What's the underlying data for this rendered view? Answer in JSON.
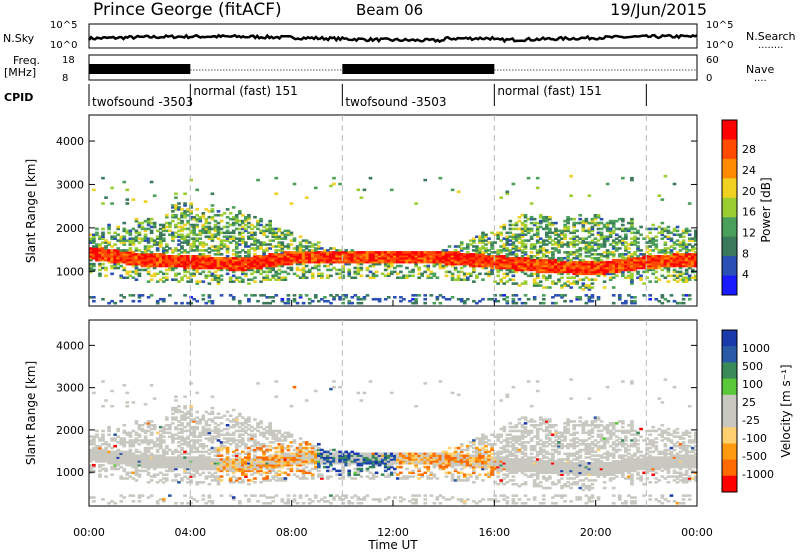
{
  "header": {
    "station": "Prince George (fitACF)",
    "beam": "Beam 06",
    "date": "19/Jun/2015"
  },
  "panel_labels": {
    "nsky": "N.Sky",
    "nsearch": "N.Search",
    "nsearch_key": "........",
    "freq": "Freq.",
    "freq_unit": "[MHz]",
    "nave": "Nave",
    "nave_key": "....",
    "cpid": "CPID",
    "nsky_ticks": [
      "10^5",
      "10^0"
    ],
    "nsearch_ticks": [
      "10^5",
      "10^0"
    ],
    "freq_ticks": [
      "18",
      "8"
    ],
    "nave_ticks": [
      "60",
      "0"
    ]
  },
  "cpid_segments": [
    {
      "label": "twofsound -3503",
      "start": 0,
      "end": 4
    },
    {
      "label": "normal (fast) 151",
      "start": 4,
      "end": 10
    },
    {
      "label": "twofsound -3503",
      "start": 10,
      "end": 16
    },
    {
      "label": "normal (fast) 151",
      "start": 16,
      "end": 22
    },
    {
      "label": "",
      "start": 22,
      "end": 24
    }
  ],
  "colors": {
    "power_scale": [
      "#1a1aff",
      "#2a4fb5",
      "#3a7a5a",
      "#4aa05a",
      "#9acd32",
      "#f0d020",
      "#ff8c00",
      "#ff4a00",
      "#ff0000"
    ],
    "velocity_scale": [
      "#ff0000",
      "#ff6a00",
      "#ff9a10",
      "#ffd070",
      "#c8c8c0",
      "#c8c8c0",
      "#5ac83a",
      "#3a8a5a",
      "#2a5aa5",
      "#1a3aaa"
    ],
    "ground_scatter": "#c8c8c0"
  },
  "chart_data": [
    {
      "type": "heatmap",
      "title": "Power",
      "ylabel": "Slant Range [km]",
      "xlabel": "Time UT",
      "xlim": [
        0,
        24
      ],
      "ylim": [
        200,
        4600
      ],
      "yticks": [
        "1000",
        "2000",
        "3000",
        "4000"
      ],
      "xticks": [
        "00:00",
        "04:00",
        "08:00",
        "12:00",
        "16:00",
        "20:00",
        "00:00"
      ],
      "colorbar": {
        "label": "Power [dB]",
        "ticks": [
          "4",
          "8",
          "12",
          "16",
          "20",
          "24",
          "28"
        ],
        "range": [
          0,
          30
        ]
      },
      "dominant_layer_km": [
        {
          "t": 0,
          "km": 1400
        },
        {
          "t": 2,
          "km": 1250
        },
        {
          "t": 4,
          "km": 1200
        },
        {
          "t": 6,
          "km": 1150
        },
        {
          "t": 8,
          "km": 1300
        },
        {
          "t": 10,
          "km": 1300
        },
        {
          "t": 12,
          "km": 1300
        },
        {
          "t": 14,
          "km": 1300
        },
        {
          "t": 16,
          "km": 1200
        },
        {
          "t": 18,
          "km": 1100
        },
        {
          "t": 20,
          "km": 1050
        },
        {
          "t": 22,
          "km": 1200
        },
        {
          "t": 24,
          "km": 1250
        }
      ]
    },
    {
      "type": "heatmap",
      "title": "Velocity",
      "ylabel": "Slant Range [km]",
      "xlabel": "Time UT",
      "xlim": [
        0,
        24
      ],
      "ylim": [
        200,
        4600
      ],
      "yticks": [
        "1000",
        "2000",
        "3000",
        "4000"
      ],
      "xticks": [
        "00:00",
        "04:00",
        "08:00",
        "12:00",
        "16:00",
        "20:00",
        "00:00"
      ],
      "colorbar": {
        "label": "Velocity [m s⁻¹]",
        "ticks": [
          "1000",
          "500",
          "100",
          "25",
          "-25",
          "-100",
          "-500",
          "-1000"
        ]
      }
    }
  ]
}
